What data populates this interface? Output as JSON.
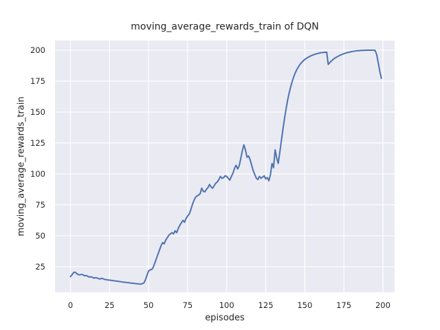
{
  "chart_data": {
    "type": "line",
    "title": "moving_average_rewards_train of DQN",
    "xlabel": "episodes",
    "ylabel": "moving_average_rewards_train",
    "legend": false,
    "grid": true,
    "xlim": [
      -9.9,
      207.5
    ],
    "ylim": [
      4.4,
      207.8
    ],
    "xticks": [
      0,
      25,
      50,
      75,
      100,
      125,
      150,
      175,
      200
    ],
    "yticks": [
      25,
      50,
      75,
      100,
      125,
      150,
      175,
      200
    ],
    "x_start": 0,
    "x_step": 1,
    "colors": {
      "line": "#4c72b0",
      "plot_background": "#eaeaf2",
      "grid": "#ffffff",
      "text": "#262626",
      "figure_background": "#ffffff"
    },
    "series": [
      {
        "name": "moving_average_rewards_train",
        "color": "#4c72b0",
        "y": [
          17.0,
          18.5,
          20.3,
          20.6,
          19.4,
          18.6,
          18.4,
          18.8,
          18.5,
          17.6,
          17.9,
          17.3,
          16.6,
          16.9,
          16.4,
          15.8,
          16.1,
          15.9,
          15.3,
          15.1,
          15.6,
          15.2,
          14.7,
          14.5,
          14.3,
          14.2,
          14.0,
          13.8,
          13.6,
          13.4,
          13.3,
          13.1,
          12.9,
          12.7,
          12.5,
          12.4,
          12.2,
          12.1,
          11.9,
          11.8,
          11.6,
          11.5,
          11.3,
          11.2,
          11.0,
          10.9,
          11.3,
          11.9,
          14.5,
          18.0,
          21.5,
          22.4,
          22.8,
          24.5,
          28.0,
          31.5,
          35.0,
          38.5,
          42.0,
          44.5,
          43.5,
          46.5,
          48.5,
          50.5,
          51.5,
          52.5,
          51.5,
          54.0,
          52.5,
          56.0,
          58.5,
          60.5,
          62.5,
          61.0,
          64.0,
          66.0,
          67.5,
          71.0,
          75.0,
          78.5,
          81.0,
          82.3,
          82.8,
          84.0,
          88.5,
          86.0,
          85.5,
          87.5,
          89.0,
          91.5,
          89.5,
          88.5,
          90.5,
          92.5,
          93.5,
          95.5,
          98.0,
          96.5,
          97.0,
          98.5,
          98.0,
          96.5,
          95.0,
          98.0,
          100.5,
          104.5,
          107.0,
          104.0,
          106.5,
          112.5,
          118.5,
          123.5,
          119.5,
          113.5,
          114.5,
          111.5,
          107.0,
          102.5,
          99.5,
          96.5,
          95.5,
          98.0,
          96.5,
          97.5,
          98.5,
          96.0,
          97.0,
          94.5,
          99.5,
          108.5,
          105.0,
          119.5,
          113.0,
          108.5,
          117.5,
          127.0,
          136.0,
          144.5,
          152.5,
          159.5,
          165.5,
          170.5,
          175.0,
          178.8,
          182.0,
          184.6,
          186.8,
          188.6,
          190.1,
          191.4,
          192.5,
          193.4,
          194.2,
          194.9,
          195.5,
          196.0,
          196.5,
          196.9,
          197.3,
          197.6,
          197.9,
          198.1,
          198.2,
          198.3,
          198.4,
          188.5,
          190.0,
          191.3,
          192.4,
          193.4,
          194.2,
          194.9,
          195.6,
          196.2,
          196.7,
          197.2,
          197.6,
          198.0,
          198.3,
          198.6,
          198.9,
          199.1,
          199.3,
          199.5,
          199.6,
          199.7,
          199.8,
          199.9,
          199.9,
          200.0,
          200.0,
          200.0,
          200.0,
          200.0,
          200.0,
          199.8,
          196.5,
          190.0,
          183.0,
          177.3
        ]
      }
    ]
  }
}
